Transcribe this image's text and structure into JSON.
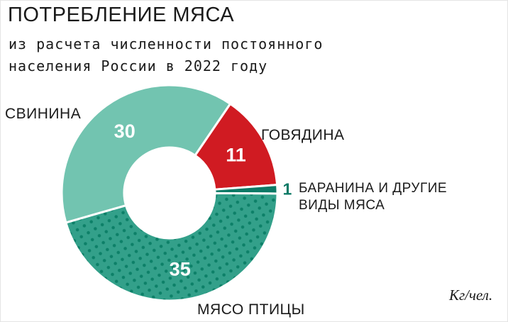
{
  "chart_data": {
    "type": "pie",
    "subtype": "donut",
    "title": "ПОТРЕБЛЕНИЕ МЯСА",
    "subtitle_lines": [
      "из расчета численности постоянного",
      "населения России в 2022 году"
    ],
    "categories": [
      "СВИНИНА",
      "ГОВЯДИНА",
      "БАРАНИНА И ДРУГИЕ ВИДЫ МЯСА",
      "МЯСО ПТИЦЫ"
    ],
    "values": [
      30,
      11,
      1,
      35
    ],
    "unit_note": "Кг/чел.",
    "colors": [
      "#72c4b0",
      "#d01b22",
      "#0d7a66",
      "#33a08a"
    ],
    "segment_ids": [
      "pork",
      "beef",
      "lamb",
      "poultry"
    ],
    "dot_pattern_segment_index": 3,
    "dot_color": "#0d8068",
    "start_angle_deg": -106,
    "hole_ratio": 0.42,
    "value_label_color": "#ffffff",
    "legend": "none"
  },
  "display_labels": {
    "pork": "СВИНИНА",
    "beef": "ГОВЯДИНА",
    "lamb_line1": "БАРАНИНА И ДРУГИЕ",
    "lamb_line2": "ВИДЫ МЯСА",
    "poultry": "МЯСО ПТИЦЫ"
  }
}
